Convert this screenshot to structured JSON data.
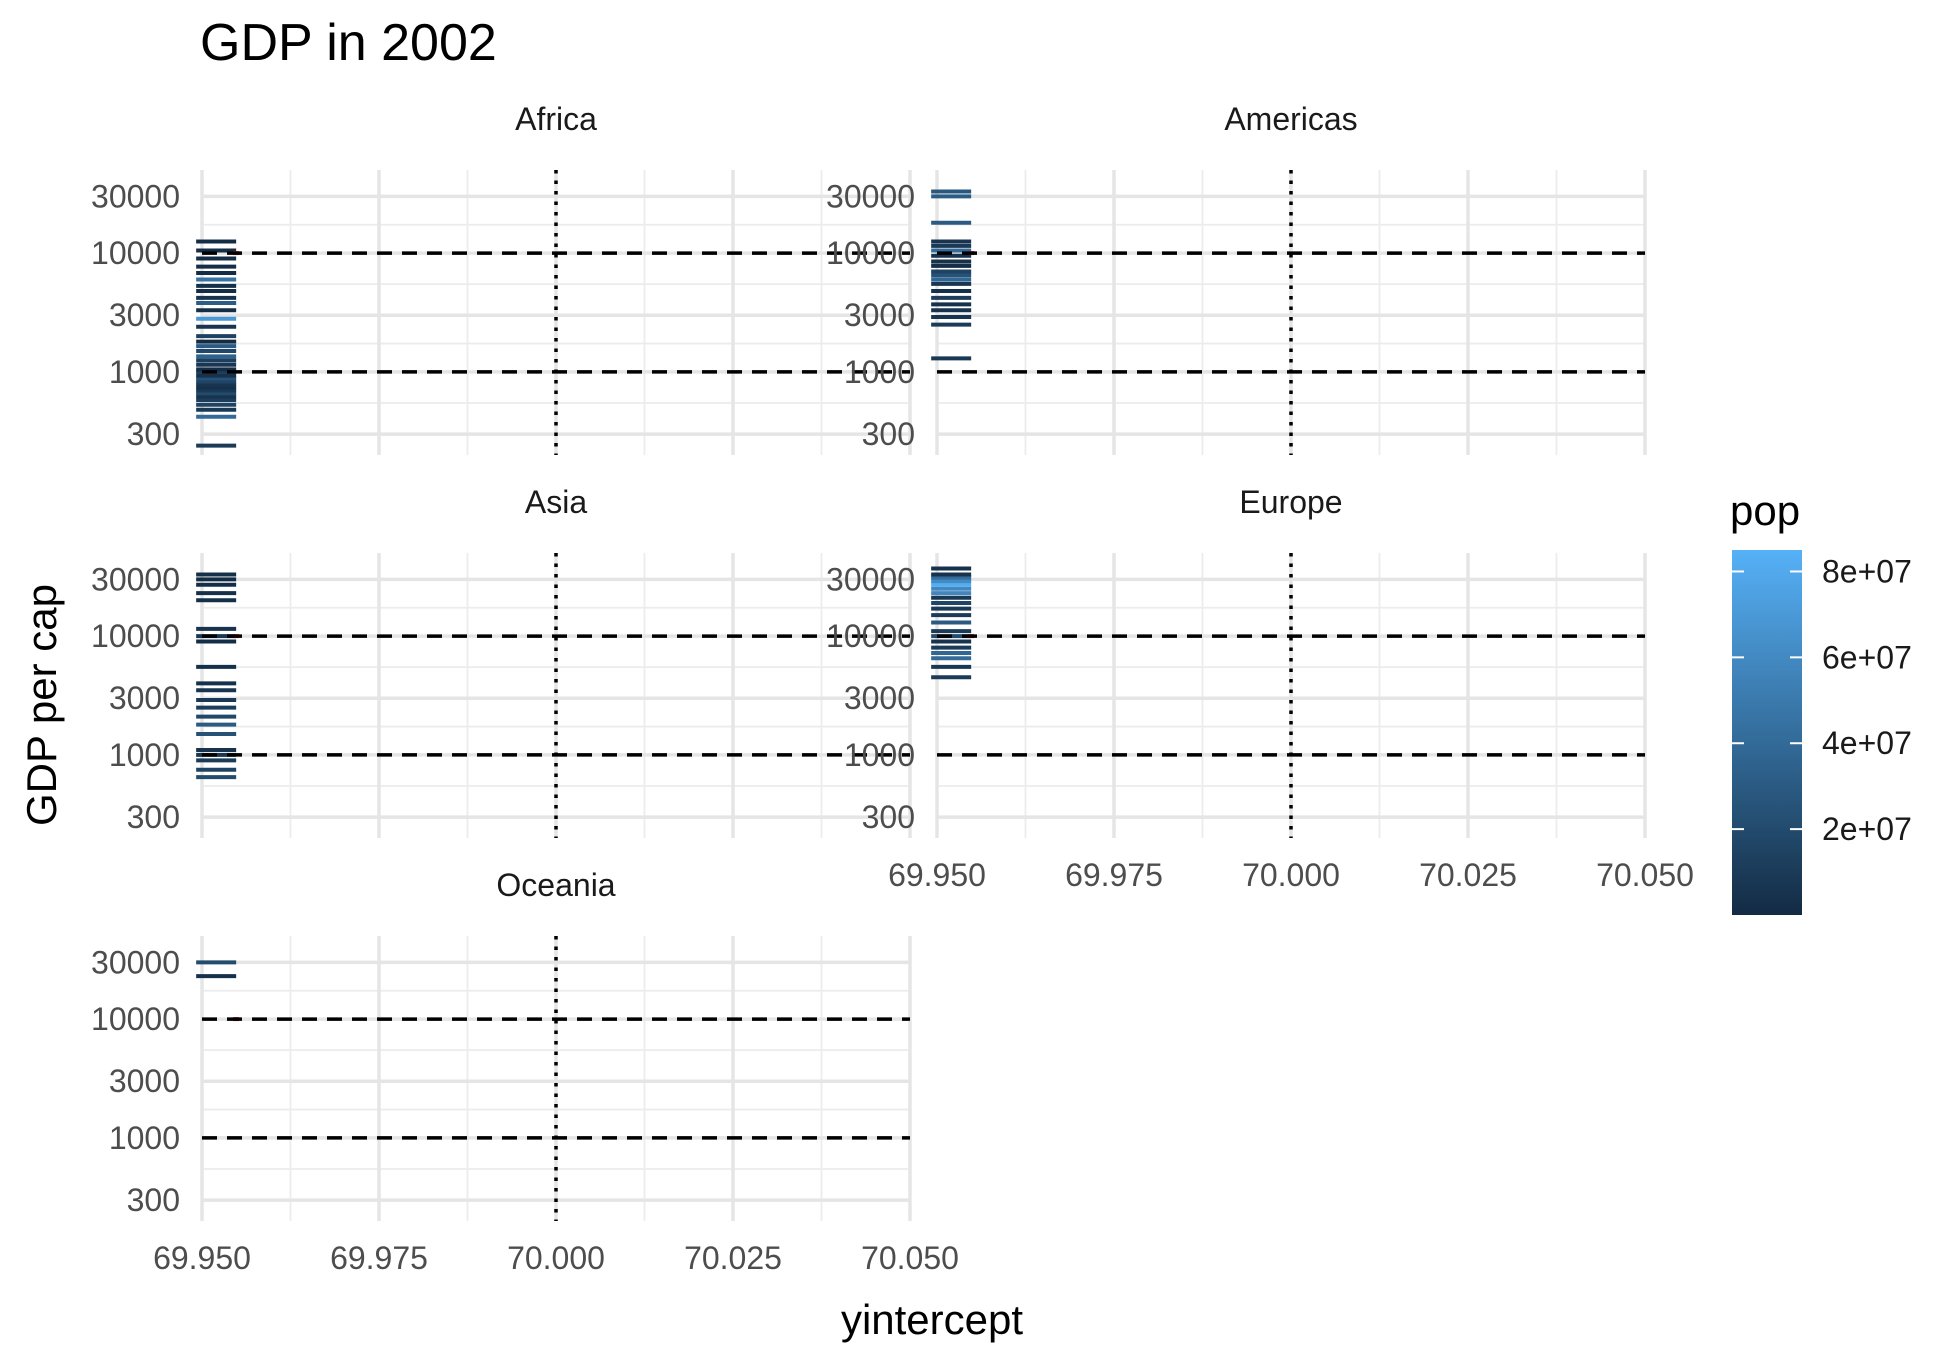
{
  "chart_data": {
    "type": "scatter",
    "title": "GDP in 2002",
    "xlabel": "yintercept",
    "ylabel": "GDP per cap",
    "x_scale": "linear",
    "y_scale": "log10",
    "xlim": [
      69.95,
      70.05
    ],
    "ylim": [
      200,
      50000
    ],
    "x_ticks": [
      "69.950",
      "69.975",
      "70.000",
      "70.025",
      "70.050"
    ],
    "x_tick_values": [
      69.95,
      69.975,
      70.0,
      70.025,
      70.05
    ],
    "y_ticks": [
      "300",
      "1000",
      "3000",
      "10000",
      "30000"
    ],
    "y_tick_values": [
      300,
      1000,
      3000,
      10000,
      30000
    ],
    "grid": true,
    "marker": "horizontal dash",
    "reference_lines": {
      "hlines": [
        1000,
        10000
      ],
      "hline_style": "dashed",
      "vline": 70.0,
      "vline_style": "dotted",
      "color": "#000000"
    },
    "mean_marker_color": "#e41a1c",
    "point_x": 69.952,
    "facets": [
      {
        "name": "Africa",
        "gdp_values": [
          240,
          420,
          480,
          530,
          580,
          620,
          660,
          700,
          740,
          780,
          830,
          880,
          930,
          1000,
          1050,
          1150,
          1250,
          1350,
          1500,
          1650,
          1800,
          2000,
          2400,
          2800,
          3300,
          3800,
          4200,
          4800,
          5300,
          6000,
          6800,
          7700,
          9000,
          10500,
          12500
        ],
        "pop_values": [
          10000000,
          40000000,
          8000000,
          15000000,
          12000000,
          5000000,
          20000000,
          9000000,
          3000000,
          6000000,
          16000000,
          25000000,
          4000000,
          11000000,
          2000000,
          7000000,
          13000000,
          35000000,
          18000000,
          30000000,
          1000000,
          14000000,
          6000000,
          70000000,
          2000000,
          32000000,
          5000000,
          1500000,
          3000000,
          45000000,
          1000000,
          2000000,
          1200000,
          800000,
          1500000
        ],
        "mean_gdp": 10000
      },
      {
        "name": "Americas",
        "gdp_values": [
          1300,
          2500,
          2900,
          3300,
          3700,
          4200,
          4800,
          5500,
          6000,
          6500,
          7000,
          7800,
          8500,
          9500,
          10500,
          11500,
          12500,
          18000,
          30000,
          33000
        ],
        "pop_values": [
          8000000,
          10000000,
          6000000,
          5000000,
          4000000,
          12000000,
          3000000,
          7000000,
          38000000,
          25000000,
          15000000,
          2000000,
          3500000,
          4500000,
          40000000,
          9000000,
          6000000,
          30000000,
          31000000,
          28000000
        ],
        "mean_gdp": 10000
      },
      {
        "name": "Asia",
        "gdp_values": [
          650,
          750,
          900,
          1000,
          1100,
          1500,
          1800,
          2100,
          2500,
          2900,
          3500,
          4000,
          5500,
          9000,
          10000,
          11500,
          20000,
          23000,
          27000,
          30000,
          33000
        ],
        "pop_values": [
          20000000,
          15000000,
          10000000,
          7000000,
          5000000,
          25000000,
          30000000,
          18000000,
          12000000,
          9000000,
          6000000,
          4000000,
          3000000,
          2000000,
          8000000,
          5000000,
          3000000,
          4000000,
          2000000,
          1000000,
          3000000
        ],
        "mean_gdp": 10000
      },
      {
        "name": "Europe",
        "gdp_values": [
          4500,
          5500,
          6500,
          7200,
          8000,
          9000,
          10000,
          11000,
          13000,
          15000,
          17000,
          19000,
          21000,
          23000,
          25000,
          27000,
          29000,
          31000,
          33000,
          37000
        ],
        "pop_values": [
          10000000,
          8000000,
          40000000,
          38000000,
          10000000,
          5000000,
          20000000,
          10000000,
          30000000,
          10000000,
          9000000,
          16000000,
          8000000,
          58000000,
          59000000,
          82000000,
          60000000,
          42000000,
          5000000,
          4500000
        ],
        "mean_gdp": 10000
      },
      {
        "name": "Oceania",
        "gdp_values": [
          23000,
          30000
        ],
        "pop_values": [
          4000000,
          20000000
        ],
        "mean_gdp": 10000
      }
    ],
    "legend": {
      "title": "pop",
      "position": "right",
      "type": "colorbar",
      "labels": [
        "2e+07",
        "4e+07",
        "6e+07",
        "8e+07"
      ],
      "values": [
        20000000,
        40000000,
        60000000,
        80000000
      ],
      "range": [
        0,
        85000000
      ],
      "color_low": "#132b43",
      "color_high": "#56b1f7"
    }
  }
}
